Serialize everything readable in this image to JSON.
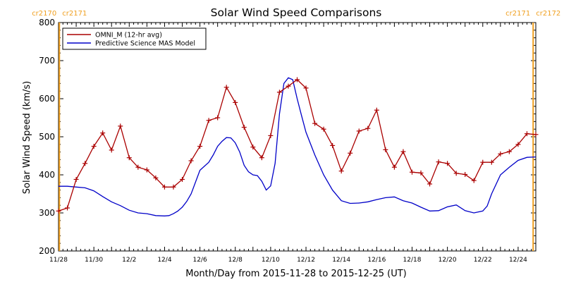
{
  "chart_data": {
    "type": "line",
    "title": "Solar Wind Speed Comparisons",
    "xlabel": "Month/Day from 2015-11-28 to 2015-12-25 (UT)",
    "ylabel": "Solar Wind Speed (km/s)",
    "xlim_days": [
      0,
      27
    ],
    "ylim": [
      200,
      800
    ],
    "yticks": [
      200,
      300,
      400,
      500,
      600,
      700,
      800
    ],
    "xticks": [
      {
        "day": 0,
        "label": "11/28"
      },
      {
        "day": 2,
        "label": "11/30"
      },
      {
        "day": 4,
        "label": "12/2"
      },
      {
        "day": 6,
        "label": "12/4"
      },
      {
        "day": 8,
        "label": "12/6"
      },
      {
        "day": 10,
        "label": "12/8"
      },
      {
        "day": 12,
        "label": "12/10"
      },
      {
        "day": 14,
        "label": "12/12"
      },
      {
        "day": 16,
        "label": "12/14"
      },
      {
        "day": 18,
        "label": "12/16"
      },
      {
        "day": 20,
        "label": "12/18"
      },
      {
        "day": 22,
        "label": "12/20"
      },
      {
        "day": 24,
        "label": "12/22"
      },
      {
        "day": 26,
        "label": "12/24"
      }
    ],
    "carrington_markers": [
      {
        "day": 0.05,
        "labels": [
          "cr2170",
          "cr2171"
        ],
        "side": "left"
      },
      {
        "day": 26.85,
        "labels": [
          "cr2171",
          "cr2172"
        ],
        "side": "right"
      }
    ],
    "legend_position": "top-left",
    "series": [
      {
        "name": "OMNI_M (12-hr avg)",
        "color": "#aa0000",
        "markers": true,
        "x": [
          0,
          0.5,
          1,
          1.5,
          2,
          2.5,
          3,
          3.5,
          4,
          4.5,
          5,
          5.5,
          6,
          6.5,
          7,
          7.5,
          8,
          8.5,
          9,
          9.5,
          10,
          10.5,
          11,
          11.5,
          12,
          12.5,
          13,
          13.5,
          14,
          14.5,
          15,
          15.5,
          16,
          16.5,
          17,
          17.5,
          18,
          18.5,
          19,
          19.5,
          20,
          20.5,
          21,
          21.5,
          22,
          22.5,
          23,
          23.5,
          24,
          24.5,
          25,
          25.5,
          26,
          26.5,
          27
        ],
        "y": [
          305,
          313,
          388,
          430,
          475,
          510,
          465,
          528,
          445,
          420,
          413,
          392,
          368,
          368,
          388,
          437,
          475,
          543,
          550,
          630,
          590,
          525,
          473,
          445,
          503,
          617,
          633,
          650,
          628,
          535,
          520,
          477,
          410,
          457,
          515,
          522,
          570,
          466,
          420,
          461,
          407,
          405,
          376,
          434,
          430,
          404,
          401,
          385,
          433,
          433,
          455,
          461,
          480,
          508,
          506
        ]
      },
      {
        "name": "Predictive Science MAS Model",
        "color": "#0000c8",
        "markers": false,
        "x": [
          0,
          0.5,
          1,
          1.5,
          2,
          2.5,
          3,
          3.5,
          4,
          4.5,
          5,
          5.5,
          6,
          6.25,
          6.5,
          6.75,
          7,
          7.25,
          7.5,
          8,
          8.5,
          8.75,
          9,
          9.25,
          9.5,
          9.75,
          10,
          10.25,
          10.5,
          10.75,
          11,
          11.25,
          11.5,
          11.75,
          12,
          12.25,
          12.5,
          12.75,
          13,
          13.25,
          13.5,
          13.75,
          14,
          14.5,
          15,
          15.5,
          16,
          16.5,
          17,
          17.5,
          18,
          18.5,
          19,
          19.5,
          20,
          20.5,
          21,
          21.5,
          22,
          22.5,
          23,
          23.5,
          24,
          24.25,
          24.5,
          24.75,
          25,
          25.5,
          26,
          26.5,
          27
        ],
        "y": [
          370,
          370,
          368,
          366,
          358,
          343,
          329,
          319,
          307,
          300,
          298,
          293,
          292,
          293,
          298,
          305,
          315,
          330,
          350,
          412,
          433,
          452,
          475,
          488,
          498,
          497,
          484,
          460,
          425,
          408,
          400,
          398,
          383,
          360,
          371,
          430,
          560,
          640,
          655,
          650,
          600,
          555,
          512,
          452,
          400,
          360,
          332,
          325,
          326,
          329,
          335,
          340,
          342,
          332,
          326,
          315,
          305,
          306,
          316,
          321,
          306,
          300,
          305,
          318,
          350,
          375,
          400,
          420,
          438,
          446,
          447
        ]
      }
    ]
  }
}
